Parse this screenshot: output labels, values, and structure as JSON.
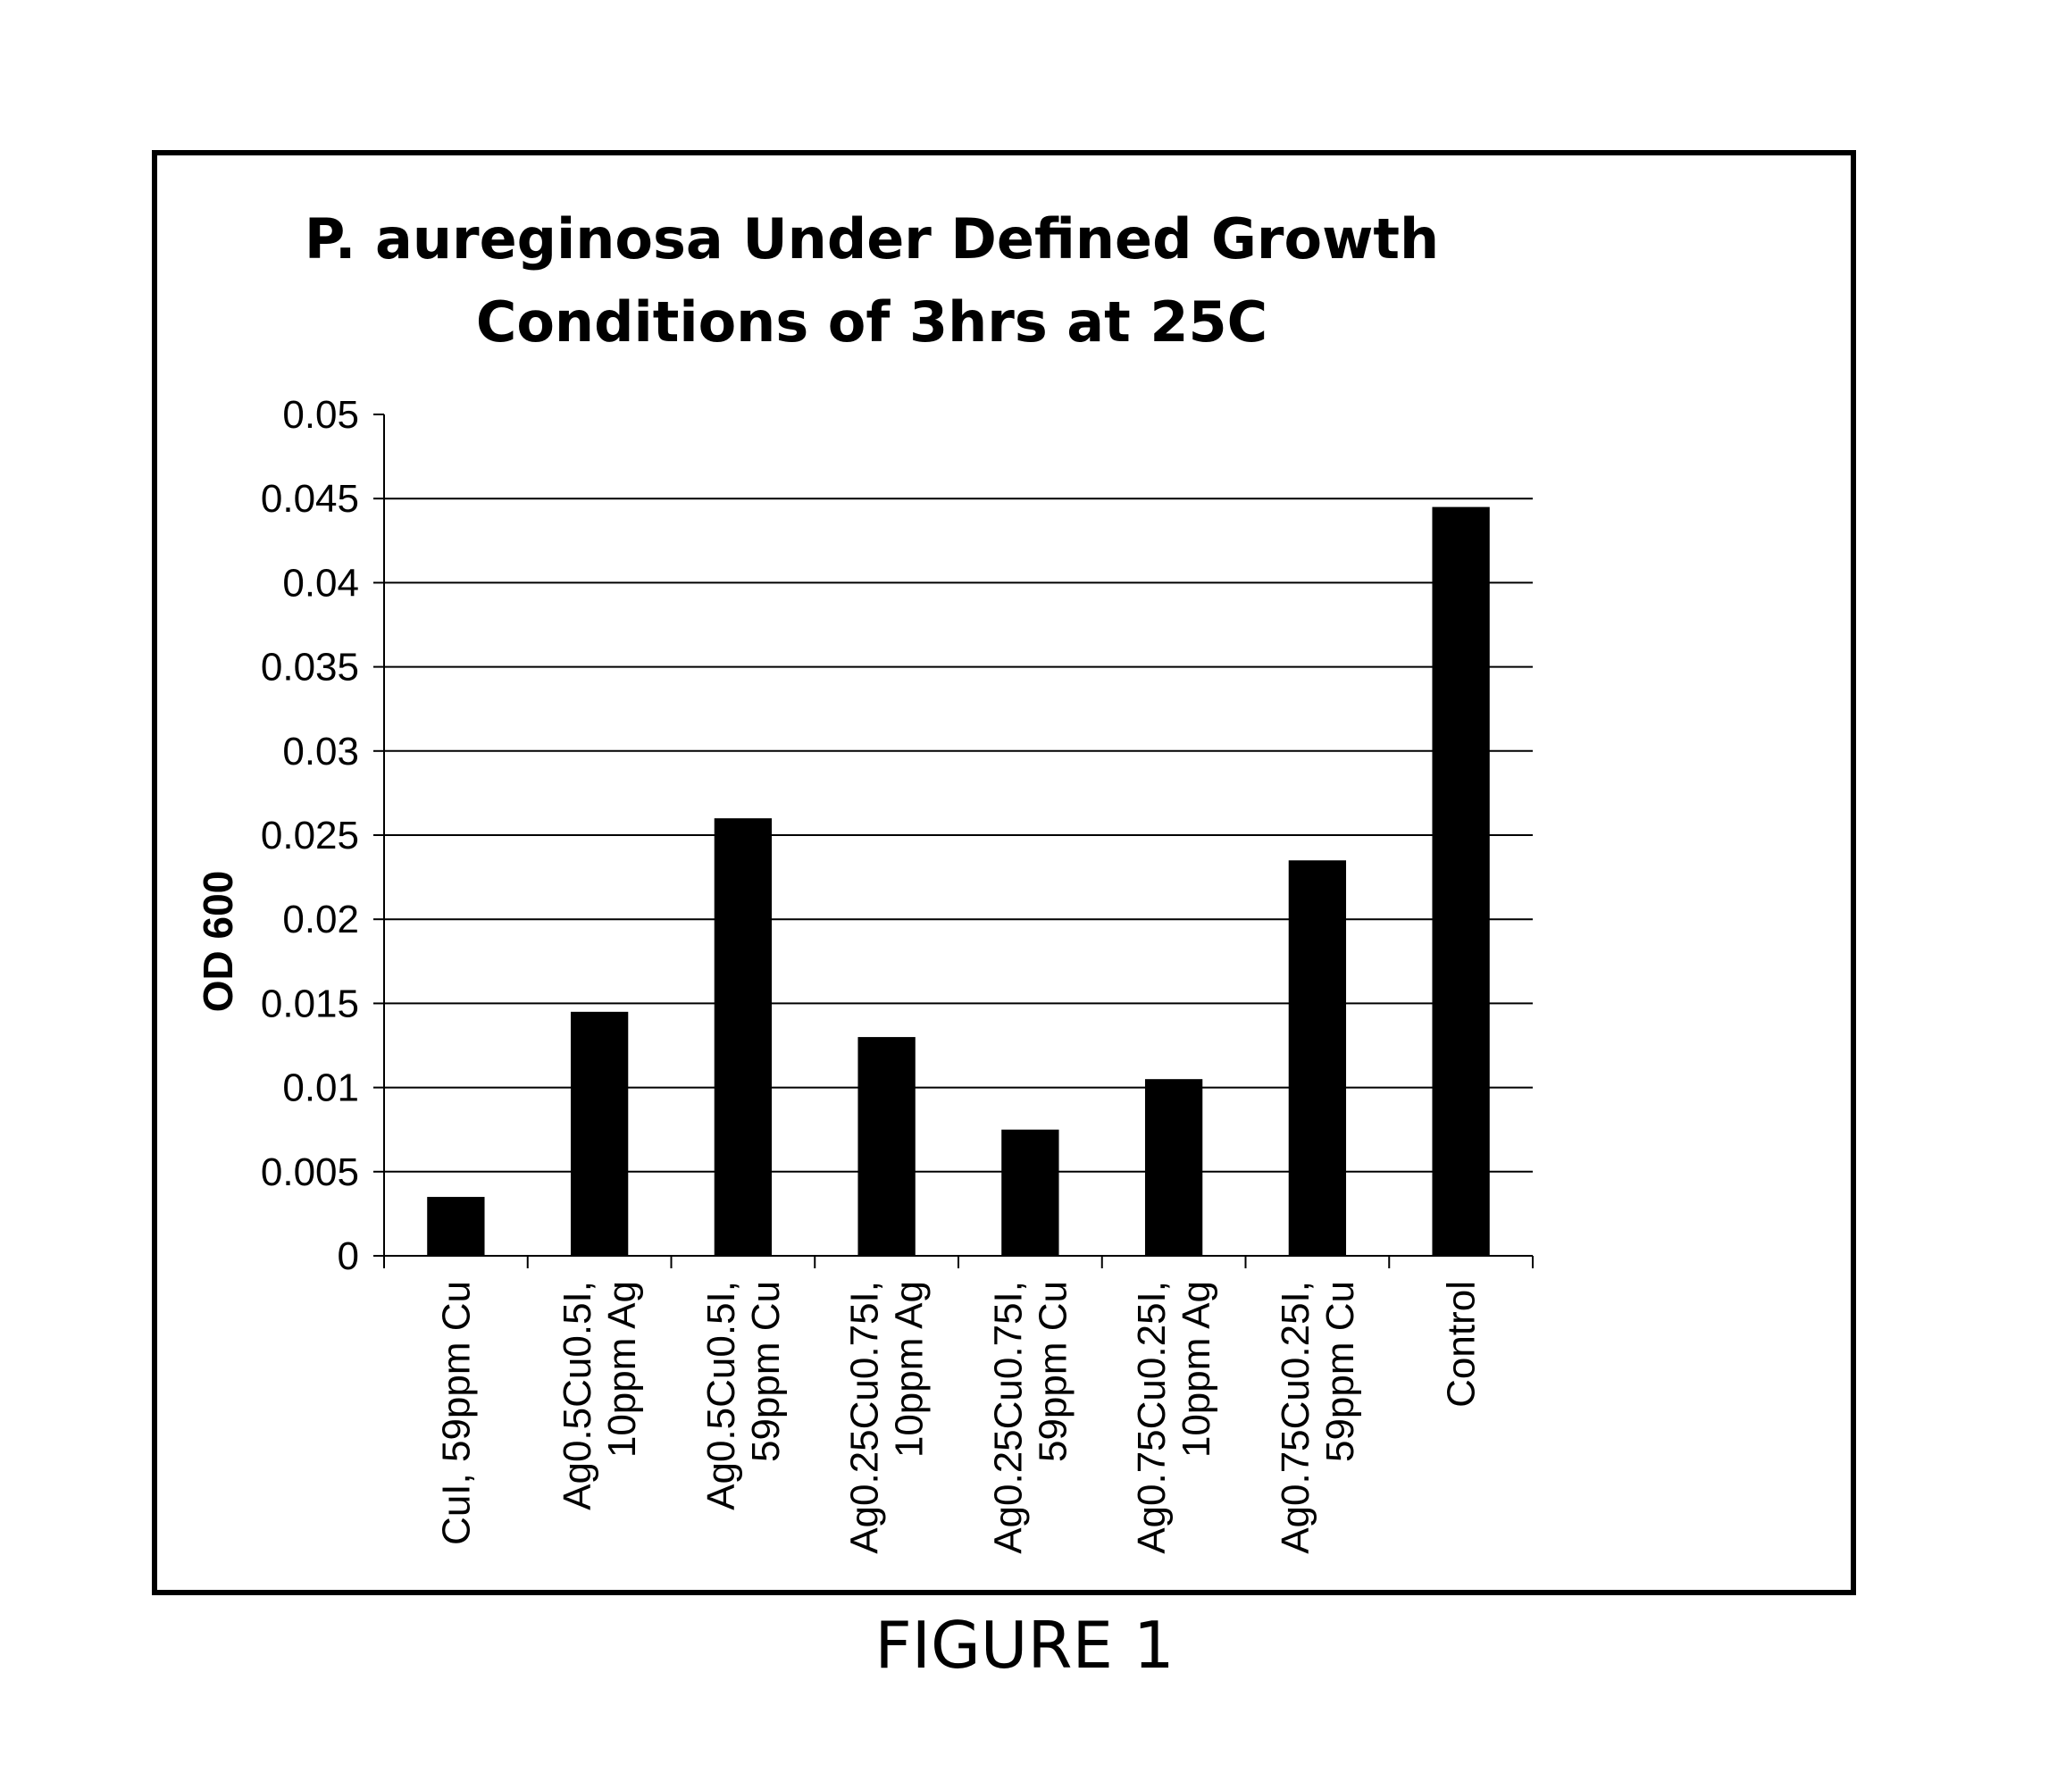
{
  "figure_caption": "FIGURE 1",
  "chart_data": {
    "type": "bar",
    "title": [
      "P. aureginosa Under Defined Growth",
      "Conditions of 3hrs at 25C"
    ],
    "xlabel": "",
    "ylabel": "OD 600",
    "ylim": [
      0,
      0.05
    ],
    "yticks": [
      "0",
      "0.005",
      "0.01",
      "0.015",
      "0.02",
      "0.025",
      "0.03",
      "0.035",
      "0.04",
      "0.045",
      "0.05"
    ],
    "grid": true,
    "legend": "none",
    "bar_color": "#000000",
    "categories": [
      [
        "CuI, 59ppm Cu"
      ],
      [
        "Ag0.5Cu0.5I,",
        "10ppm Ag"
      ],
      [
        "Ag0.5Cu0.5I,",
        "59ppm Cu"
      ],
      [
        "Ag0.25Cu0.75I,",
        "10ppm Ag"
      ],
      [
        "Ag0.25Cu0.75I,",
        "59ppm Cu"
      ],
      [
        "Ag0.75Cu0.25I,",
        "10ppm Ag"
      ],
      [
        "Ag0.75Cu0.25I,",
        "59ppm Cu"
      ],
      [
        "Control"
      ]
    ],
    "values": [
      0.0035,
      0.0145,
      0.026,
      0.013,
      0.0075,
      0.0105,
      0.0235,
      0.0445
    ]
  }
}
